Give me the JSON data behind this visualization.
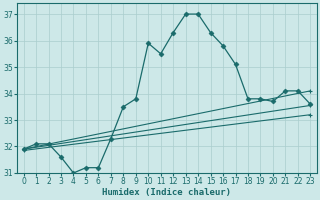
{
  "xlabel": "Humidex (Indice chaleur)",
  "background_color": "#cde8e8",
  "grid_color": "#aacece",
  "line_color": "#1a6b6b",
  "xlim": [
    -0.5,
    23.5
  ],
  "ylim": [
    31,
    37.4
  ],
  "yticks": [
    31,
    32,
    33,
    34,
    35,
    36,
    37
  ],
  "xticks": [
    0,
    1,
    2,
    3,
    4,
    5,
    6,
    7,
    8,
    9,
    10,
    11,
    12,
    13,
    14,
    15,
    16,
    17,
    18,
    19,
    20,
    21,
    22,
    23
  ],
  "series1_x": [
    0,
    1,
    2,
    3,
    4,
    5,
    6,
    7,
    8,
    9,
    10,
    11,
    12,
    13,
    14,
    15,
    16,
    17,
    18,
    19,
    20,
    21,
    22,
    23
  ],
  "series1_y": [
    31.9,
    32.1,
    32.1,
    31.6,
    31.0,
    31.2,
    31.2,
    32.3,
    33.5,
    33.8,
    35.9,
    35.5,
    36.3,
    37.0,
    37.0,
    36.3,
    35.8,
    35.1,
    33.8,
    33.8,
    33.7,
    34.1,
    34.1,
    33.6
  ],
  "series2_x": [
    0,
    23
  ],
  "series2_y": [
    31.9,
    34.1
  ],
  "series3_x": [
    0,
    23
  ],
  "series3_y": [
    31.9,
    33.55
  ],
  "series4_x": [
    0,
    23
  ],
  "series4_y": [
    31.85,
    33.2
  ]
}
